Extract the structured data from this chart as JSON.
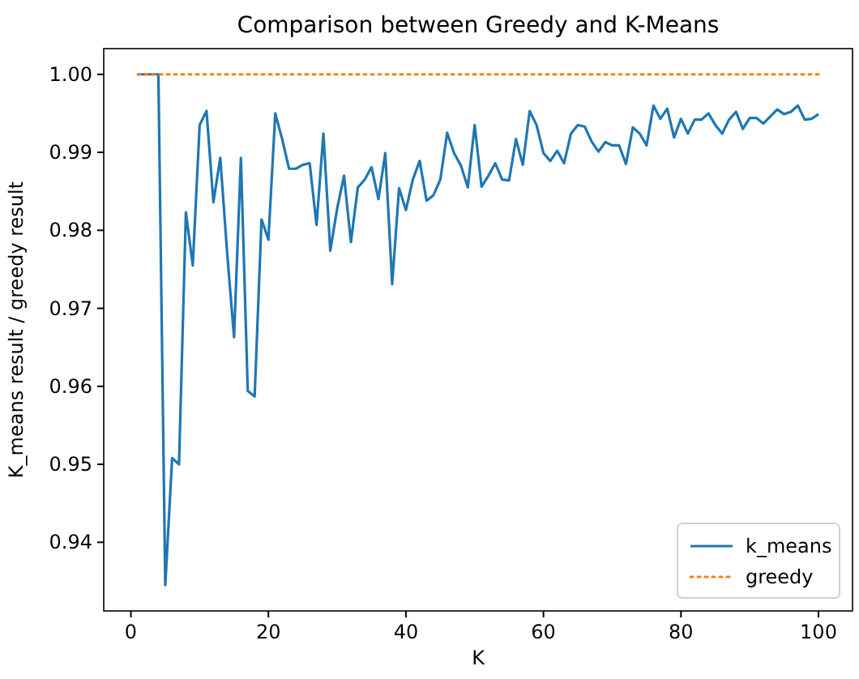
{
  "chart_data": {
    "type": "line",
    "title": "Comparison between Greedy and K-Means",
    "xlabel": "K",
    "ylabel": "K_means result / greedy result",
    "x": [
      1,
      2,
      3,
      4,
      5,
      6,
      7,
      8,
      9,
      10,
      11,
      12,
      13,
      14,
      15,
      16,
      17,
      18,
      19,
      20,
      21,
      22,
      23,
      24,
      25,
      26,
      27,
      28,
      29,
      30,
      31,
      32,
      33,
      34,
      35,
      36,
      37,
      38,
      39,
      40,
      41,
      42,
      43,
      44,
      45,
      46,
      47,
      48,
      49,
      50,
      51,
      52,
      53,
      54,
      55,
      56,
      57,
      58,
      59,
      60,
      61,
      62,
      63,
      64,
      65,
      66,
      67,
      68,
      69,
      70,
      71,
      72,
      73,
      74,
      75,
      76,
      77,
      78,
      79,
      80,
      81,
      82,
      83,
      84,
      85,
      86,
      87,
      88,
      89,
      90,
      91,
      92,
      93,
      94,
      95,
      96,
      97,
      98,
      99,
      100
    ],
    "series": [
      {
        "name": "k_means",
        "color": "#1f77b4",
        "line_style": "solid",
        "values": [
          1.0,
          1.0,
          1.0,
          1.0,
          0.9345,
          0.9508,
          0.95,
          0.9823,
          0.9755,
          0.9935,
          0.9953,
          0.9836,
          0.9893,
          0.9771,
          0.9663,
          0.9893,
          0.9594,
          0.9587,
          0.9814,
          0.9788,
          0.995,
          0.9917,
          0.9879,
          0.9879,
          0.9884,
          0.9886,
          0.9807,
          0.9924,
          0.9774,
          0.9828,
          0.987,
          0.9785,
          0.9855,
          0.9865,
          0.9881,
          0.984,
          0.9899,
          0.9731,
          0.9854,
          0.9826,
          0.9865,
          0.9889,
          0.9838,
          0.9845,
          0.9865,
          0.9925,
          0.9899,
          0.9883,
          0.9855,
          0.9935,
          0.9856,
          0.987,
          0.9886,
          0.9865,
          0.9864,
          0.9917,
          0.9884,
          0.9953,
          0.9935,
          0.9899,
          0.9889,
          0.9902,
          0.9886,
          0.9924,
          0.9935,
          0.9933,
          0.9914,
          0.9901,
          0.9913,
          0.9909,
          0.9909,
          0.9885,
          0.9932,
          0.9924,
          0.9909,
          0.996,
          0.9943,
          0.9956,
          0.9919,
          0.9943,
          0.9924,
          0.9942,
          0.9942,
          0.995,
          0.9935,
          0.9924,
          0.9942,
          0.9952,
          0.993,
          0.9944,
          0.9944,
          0.9937,
          0.9946,
          0.9955,
          0.9949,
          0.9952,
          0.996,
          0.9942,
          0.9943,
          0.9949
        ]
      },
      {
        "name": "greedy",
        "color": "#ff7f0e",
        "line_style": "dotted",
        "values": [
          1.0,
          1.0,
          1.0,
          1.0,
          1.0,
          1.0,
          1.0,
          1.0,
          1.0,
          1.0,
          1.0,
          1.0,
          1.0,
          1.0,
          1.0,
          1.0,
          1.0,
          1.0,
          1.0,
          1.0,
          1.0,
          1.0,
          1.0,
          1.0,
          1.0,
          1.0,
          1.0,
          1.0,
          1.0,
          1.0,
          1.0,
          1.0,
          1.0,
          1.0,
          1.0,
          1.0,
          1.0,
          1.0,
          1.0,
          1.0,
          1.0,
          1.0,
          1.0,
          1.0,
          1.0,
          1.0,
          1.0,
          1.0,
          1.0,
          1.0,
          1.0,
          1.0,
          1.0,
          1.0,
          1.0,
          1.0,
          1.0,
          1.0,
          1.0,
          1.0,
          1.0,
          1.0,
          1.0,
          1.0,
          1.0,
          1.0,
          1.0,
          1.0,
          1.0,
          1.0,
          1.0,
          1.0,
          1.0,
          1.0,
          1.0,
          1.0,
          1.0,
          1.0,
          1.0,
          1.0,
          1.0,
          1.0,
          1.0,
          1.0,
          1.0,
          1.0,
          1.0,
          1.0,
          1.0,
          1.0,
          1.0,
          1.0,
          1.0,
          1.0,
          1.0,
          1.0,
          1.0,
          1.0,
          1.0,
          1.0
        ]
      }
    ],
    "xlim": [
      -3.95,
      104.95
    ],
    "xticks": [
      0,
      20,
      40,
      60,
      80,
      100
    ],
    "ylim": [
      0.9312,
      1.0033
    ],
    "yticks": [
      {
        "value": 0.94,
        "label": "0.94"
      },
      {
        "value": 0.95,
        "label": "0.95"
      },
      {
        "value": 0.96,
        "label": "0.96"
      },
      {
        "value": 0.97,
        "label": "0.97"
      },
      {
        "value": 0.98,
        "label": "0.98"
      },
      {
        "value": 0.99,
        "label": "0.99"
      },
      {
        "value": 1.0,
        "label": "1.00"
      }
    ],
    "grid": false,
    "legend": "bottom right",
    "marker": "none"
  }
}
